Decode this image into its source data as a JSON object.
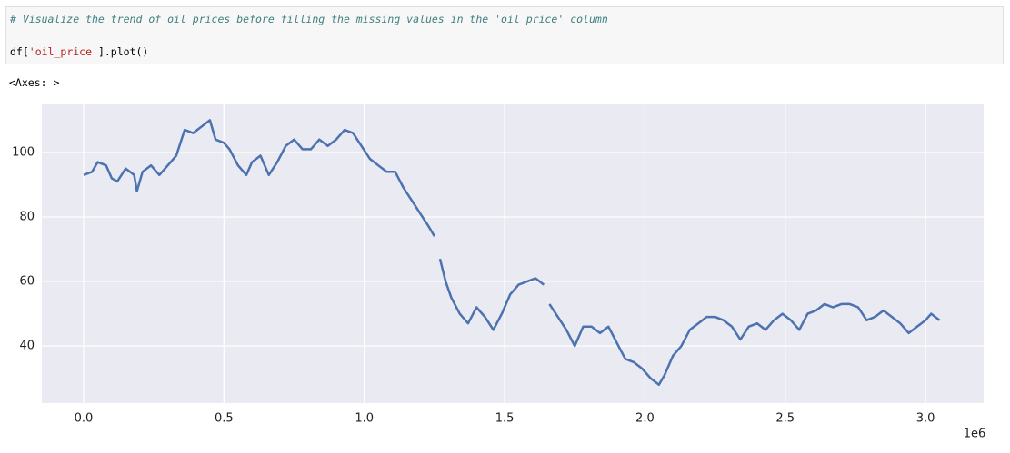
{
  "cell": {
    "comment": "# Visualize the trend of oil prices before filling the missing values in the 'oil_price' column",
    "code": [
      "df[",
      "'oil_price'",
      "].plot()"
    ]
  },
  "output": "<Axes: >",
  "chart_data": {
    "type": "line",
    "x_offset_label": "1e6",
    "x": [
      0,
      0.03,
      0.05,
      0.08,
      0.1,
      0.12,
      0.15,
      0.18,
      0.19,
      0.21,
      0.24,
      0.27,
      0.3,
      0.33,
      0.36,
      0.39,
      0.42,
      0.45,
      0.47,
      0.5,
      0.52,
      0.55,
      0.58,
      0.6,
      0.63,
      0.66,
      0.69,
      0.72,
      0.75,
      0.78,
      0.81,
      0.84,
      0.87,
      0.9,
      0.93,
      0.96,
      0.99,
      1.02,
      1.05,
      1.08,
      1.11,
      1.14,
      1.17,
      1.2,
      1.23,
      1.25,
      1.26,
      1.27,
      1.29,
      1.31,
      1.34,
      1.37,
      1.4,
      1.43,
      1.46,
      1.49,
      1.52,
      1.55,
      1.58,
      1.61,
      1.64,
      1.65,
      1.66,
      1.69,
      1.72,
      1.75,
      1.78,
      1.81,
      1.84,
      1.87,
      1.9,
      1.93,
      1.96,
      1.99,
      2.02,
      2.05,
      2.07,
      2.1,
      2.13,
      2.16,
      2.19,
      2.22,
      2.25,
      2.28,
      2.31,
      2.34,
      2.37,
      2.4,
      2.43,
      2.46,
      2.49,
      2.52,
      2.55,
      2.58,
      2.61,
      2.64,
      2.67,
      2.7,
      2.73,
      2.76,
      2.79,
      2.82,
      2.85,
      2.88,
      2.91,
      2.94,
      2.97,
      3.0,
      3.02,
      3.05
    ],
    "series": [
      {
        "color": "#4c72b0",
        "values": [
          93,
          94,
          97,
          96,
          92,
          91,
          95,
          93,
          88,
          94,
          96,
          93,
          96,
          99,
          107,
          106,
          108,
          110,
          104,
          103,
          101,
          96,
          93,
          97,
          99,
          93,
          97,
          102,
          104,
          101,
          101,
          104,
          102,
          104,
          107,
          106,
          102,
          98,
          96,
          94,
          94,
          89,
          85,
          81,
          77,
          74,
          null,
          67,
          60,
          55,
          50,
          47,
          52,
          49,
          45,
          50,
          56,
          59,
          60,
          61,
          59,
          null,
          53,
          49,
          45,
          40,
          46,
          46,
          44,
          46,
          41,
          36,
          35,
          33,
          30,
          28,
          31,
          37,
          40,
          45,
          47,
          49,
          49,
          48,
          46,
          42,
          46,
          47,
          45,
          48,
          50,
          48,
          45,
          50,
          51,
          53,
          52,
          53,
          53,
          52,
          48,
          49,
          51,
          49,
          47,
          44,
          46,
          48,
          50,
          48
        ]
      }
    ],
    "xlim": [
      -0.149,
      3.207
    ],
    "ylim": [
      22.3,
      114.9
    ],
    "xticks": [
      {
        "value": 0,
        "label": "0.0"
      },
      0.5,
      {
        "value": 1,
        "label": "1.0"
      },
      1.5,
      {
        "value": 2,
        "label": "2.0"
      },
      2.5,
      {
        "value": 3,
        "label": "3.0"
      }
    ],
    "yticks": [
      40,
      60,
      80,
      100
    ],
    "grid": true
  }
}
